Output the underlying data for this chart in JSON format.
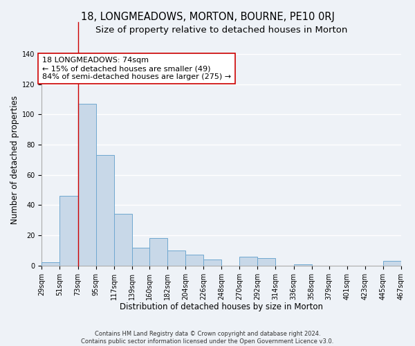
{
  "title": "18, LONGMEADOWS, MORTON, BOURNE, PE10 0RJ",
  "subtitle": "Size of property relative to detached houses in Morton",
  "xlabel": "Distribution of detached houses by size in Morton",
  "ylabel": "Number of detached properties",
  "footnote1": "Contains HM Land Registry data © Crown copyright and database right 2024.",
  "footnote2": "Contains public sector information licensed under the Open Government Licence v3.0.",
  "bar_edges": [
    29,
    51,
    73,
    95,
    117,
    139,
    160,
    182,
    204,
    226,
    248,
    270,
    292,
    314,
    336,
    358,
    379,
    401,
    423,
    445,
    467
  ],
  "bar_heights": [
    2,
    46,
    107,
    73,
    34,
    12,
    18,
    10,
    7,
    4,
    0,
    6,
    5,
    0,
    1,
    0,
    0,
    0,
    0,
    3
  ],
  "bar_color": "#c8d8e8",
  "bar_edge_color": "#6fa8d0",
  "vline_x": 73,
  "vline_color": "#cc0000",
  "annotation_line1": "18 LONGMEADOWS: 74sqm",
  "annotation_line2": "← 15% of detached houses are smaller (49)",
  "annotation_line3": "84% of semi-detached houses are larger (275) →",
  "annotation_box_color": "#ffffff",
  "annotation_box_edge_color": "#cc0000",
  "ylim": [
    0,
    140
  ],
  "yticks": [
    0,
    20,
    40,
    60,
    80,
    100,
    120,
    140
  ],
  "tick_labels": [
    "29sqm",
    "51sqm",
    "73sqm",
    "95sqm",
    "117sqm",
    "139sqm",
    "160sqm",
    "182sqm",
    "204sqm",
    "226sqm",
    "248sqm",
    "270sqm",
    "292sqm",
    "314sqm",
    "336sqm",
    "358sqm",
    "379sqm",
    "401sqm",
    "423sqm",
    "445sqm",
    "467sqm"
  ],
  "bg_color": "#eef2f7",
  "grid_color": "#ffffff",
  "title_fontsize": 10.5,
  "subtitle_fontsize": 9.5,
  "axis_label_fontsize": 8.5,
  "tick_fontsize": 7,
  "annotation_fontsize": 8
}
